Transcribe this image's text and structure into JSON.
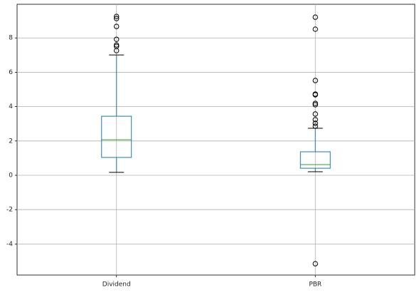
{
  "chart_data": {
    "type": "box",
    "categories": [
      "Dividend",
      "PBR"
    ],
    "boxes": [
      {
        "whisker_low": 0.17,
        "q1": 1.04,
        "median": 2.07,
        "q3": 3.44,
        "whisker_high": 7.01,
        "outliers": [
          9.25,
          9.13,
          8.67,
          7.92,
          7.59,
          7.51,
          7.26
        ]
      },
      {
        "whisker_low": 0.21,
        "q1": 0.41,
        "median": 0.62,
        "q3": 1.37,
        "whisker_high": 2.74,
        "outliers": [
          9.21,
          8.51,
          5.52,
          4.73,
          4.69,
          4.19,
          4.11,
          3.57,
          3.24,
          3.03,
          2.86,
          -5.15
        ]
      }
    ],
    "box_color": "#1f77b4",
    "median_color": "#2ca02c",
    "cap_color": "#000000",
    "ylim": [
      -5.81,
      9.96
    ],
    "yticks": [
      -4,
      -2,
      0,
      2,
      4,
      6,
      8
    ],
    "grid": true
  }
}
